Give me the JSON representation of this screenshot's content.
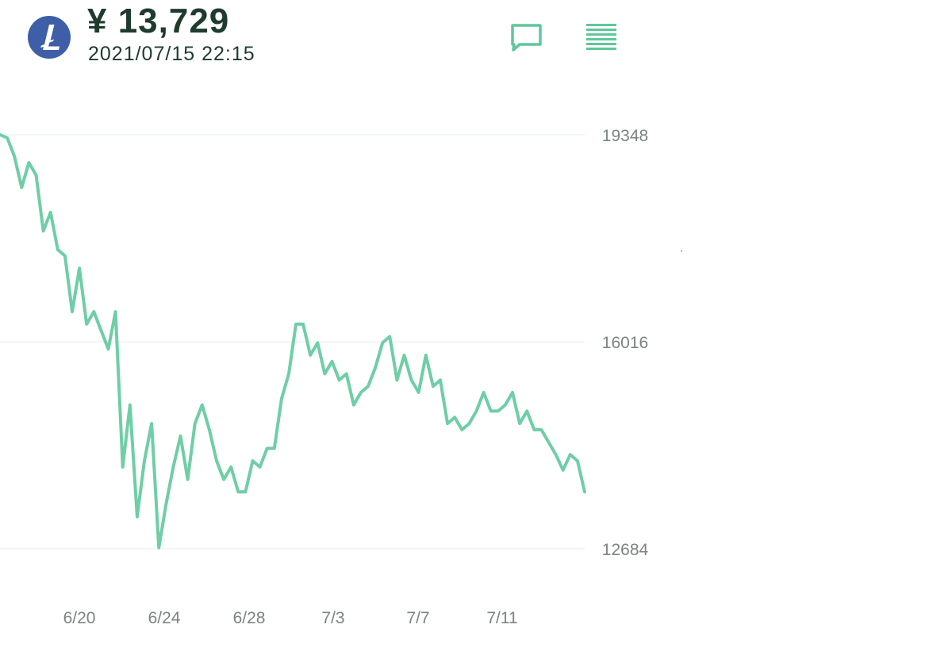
{
  "header": {
    "coin_icon": "litecoin-logo-icon",
    "price": "¥ 13,729",
    "timestamp": "2021/07/15 22:15",
    "chat_icon": "chat-bubble-icon",
    "menu_icon": "menu-lines-icon"
  },
  "colors": {
    "line": "#6fcea6",
    "brand": "#3f5ea8",
    "text_dark": "#1f3b2e",
    "axis_text": "#7b8480",
    "grid": "#e9eeec",
    "icon": "#5fc79b"
  },
  "chart_data": {
    "type": "line",
    "title": "",
    "xlabel": "",
    "ylabel": "",
    "y_ticks": [
      "19348",
      "16016",
      "12684"
    ],
    "ylim": [
      12684,
      19348
    ],
    "x_ticks": [
      "6/20",
      "6/24",
      "6/28",
      "7/3",
      "7/7",
      "7/11"
    ],
    "grid": "horizontal",
    "series": [
      {
        "values": [
          19348,
          19300,
          19000,
          18500,
          18900,
          18700,
          17800,
          18100,
          17500,
          17400,
          16500,
          17200,
          16300,
          16500,
          16200,
          15900,
          16500,
          14000,
          15000,
          13200,
          14100,
          14700,
          12700,
          13400,
          14000,
          14500,
          13800,
          14700,
          15000,
          14600,
          14100,
          13800,
          14000,
          13600,
          13600,
          14100,
          14000,
          14300,
          14300,
          15100,
          15500,
          16300,
          16300,
          15800,
          16000,
          15500,
          15700,
          15400,
          15500,
          15000,
          15200,
          15300,
          15600,
          16000,
          16100,
          15400,
          15800,
          15400,
          15200,
          15800,
          15300,
          15400,
          14700,
          14800,
          14600,
          14700,
          14900,
          15200,
          14900,
          14900,
          15000,
          15200,
          14700,
          14900,
          14600,
          14600,
          14400,
          14200,
          13950,
          14200,
          14100,
          13600
        ]
      }
    ]
  }
}
